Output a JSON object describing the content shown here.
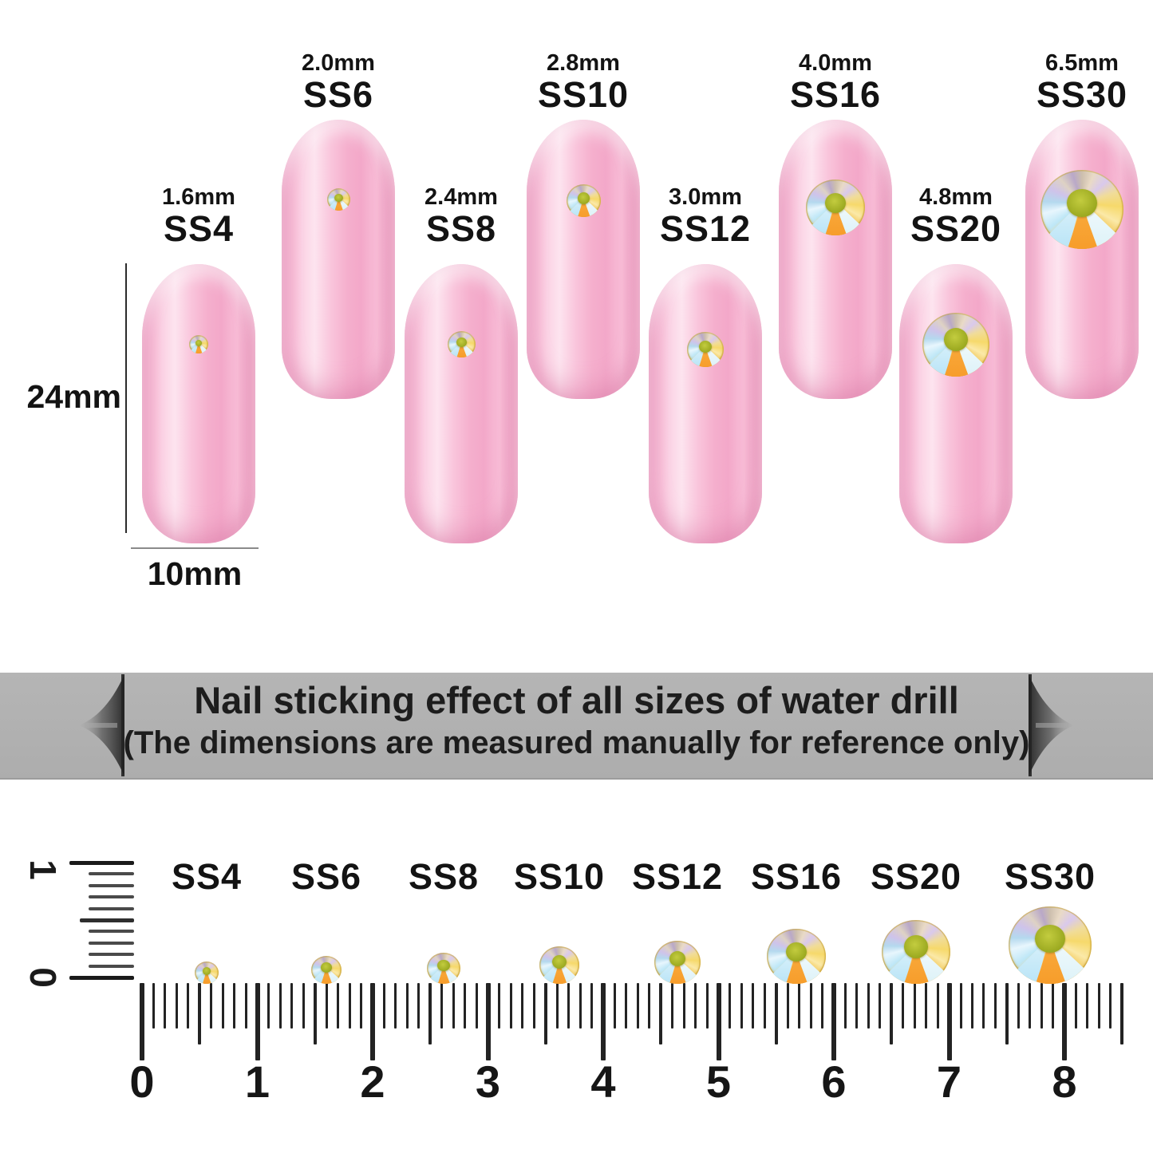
{
  "nails_section": {
    "height_dimension": "24mm",
    "width_dimension": "10mm",
    "nails": [
      {
        "size": "1.6mm",
        "name": "SS4"
      },
      {
        "size": "2.0mm",
        "name": "SS6"
      },
      {
        "size": "2.4mm",
        "name": "SS8"
      },
      {
        "size": "2.8mm",
        "name": "SS10"
      },
      {
        "size": "3.0mm",
        "name": "SS12"
      },
      {
        "size": "4.0mm",
        "name": "SS16"
      },
      {
        "size": "4.8mm",
        "name": "SS20"
      },
      {
        "size": "6.5mm",
        "name": "SS30"
      }
    ]
  },
  "banner": {
    "title": "Nail sticking effect of all sizes of water drill",
    "subtitle": "(The dimensions are measured manually for reference only)"
  },
  "ruler_section": {
    "vertical_scale_numbers": [
      "1",
      "0"
    ],
    "stone_labels": [
      "SS4",
      "SS6",
      "SS8",
      "SS10",
      "SS12",
      "SS16",
      "SS20",
      "SS30"
    ],
    "scale_numbers": [
      "0",
      "1",
      "2",
      "3",
      "4",
      "5",
      "6",
      "7",
      "8"
    ]
  },
  "colors": {
    "nail_pink": "#f7b6d2",
    "banner_gray": "#b0b0b0",
    "gem_center_olive": "#a9b02a",
    "gem_gold": "#f6d96b",
    "gem_orange": "#f5a93f",
    "gem_blue": "#bee7f7",
    "text_black": "#131313"
  }
}
